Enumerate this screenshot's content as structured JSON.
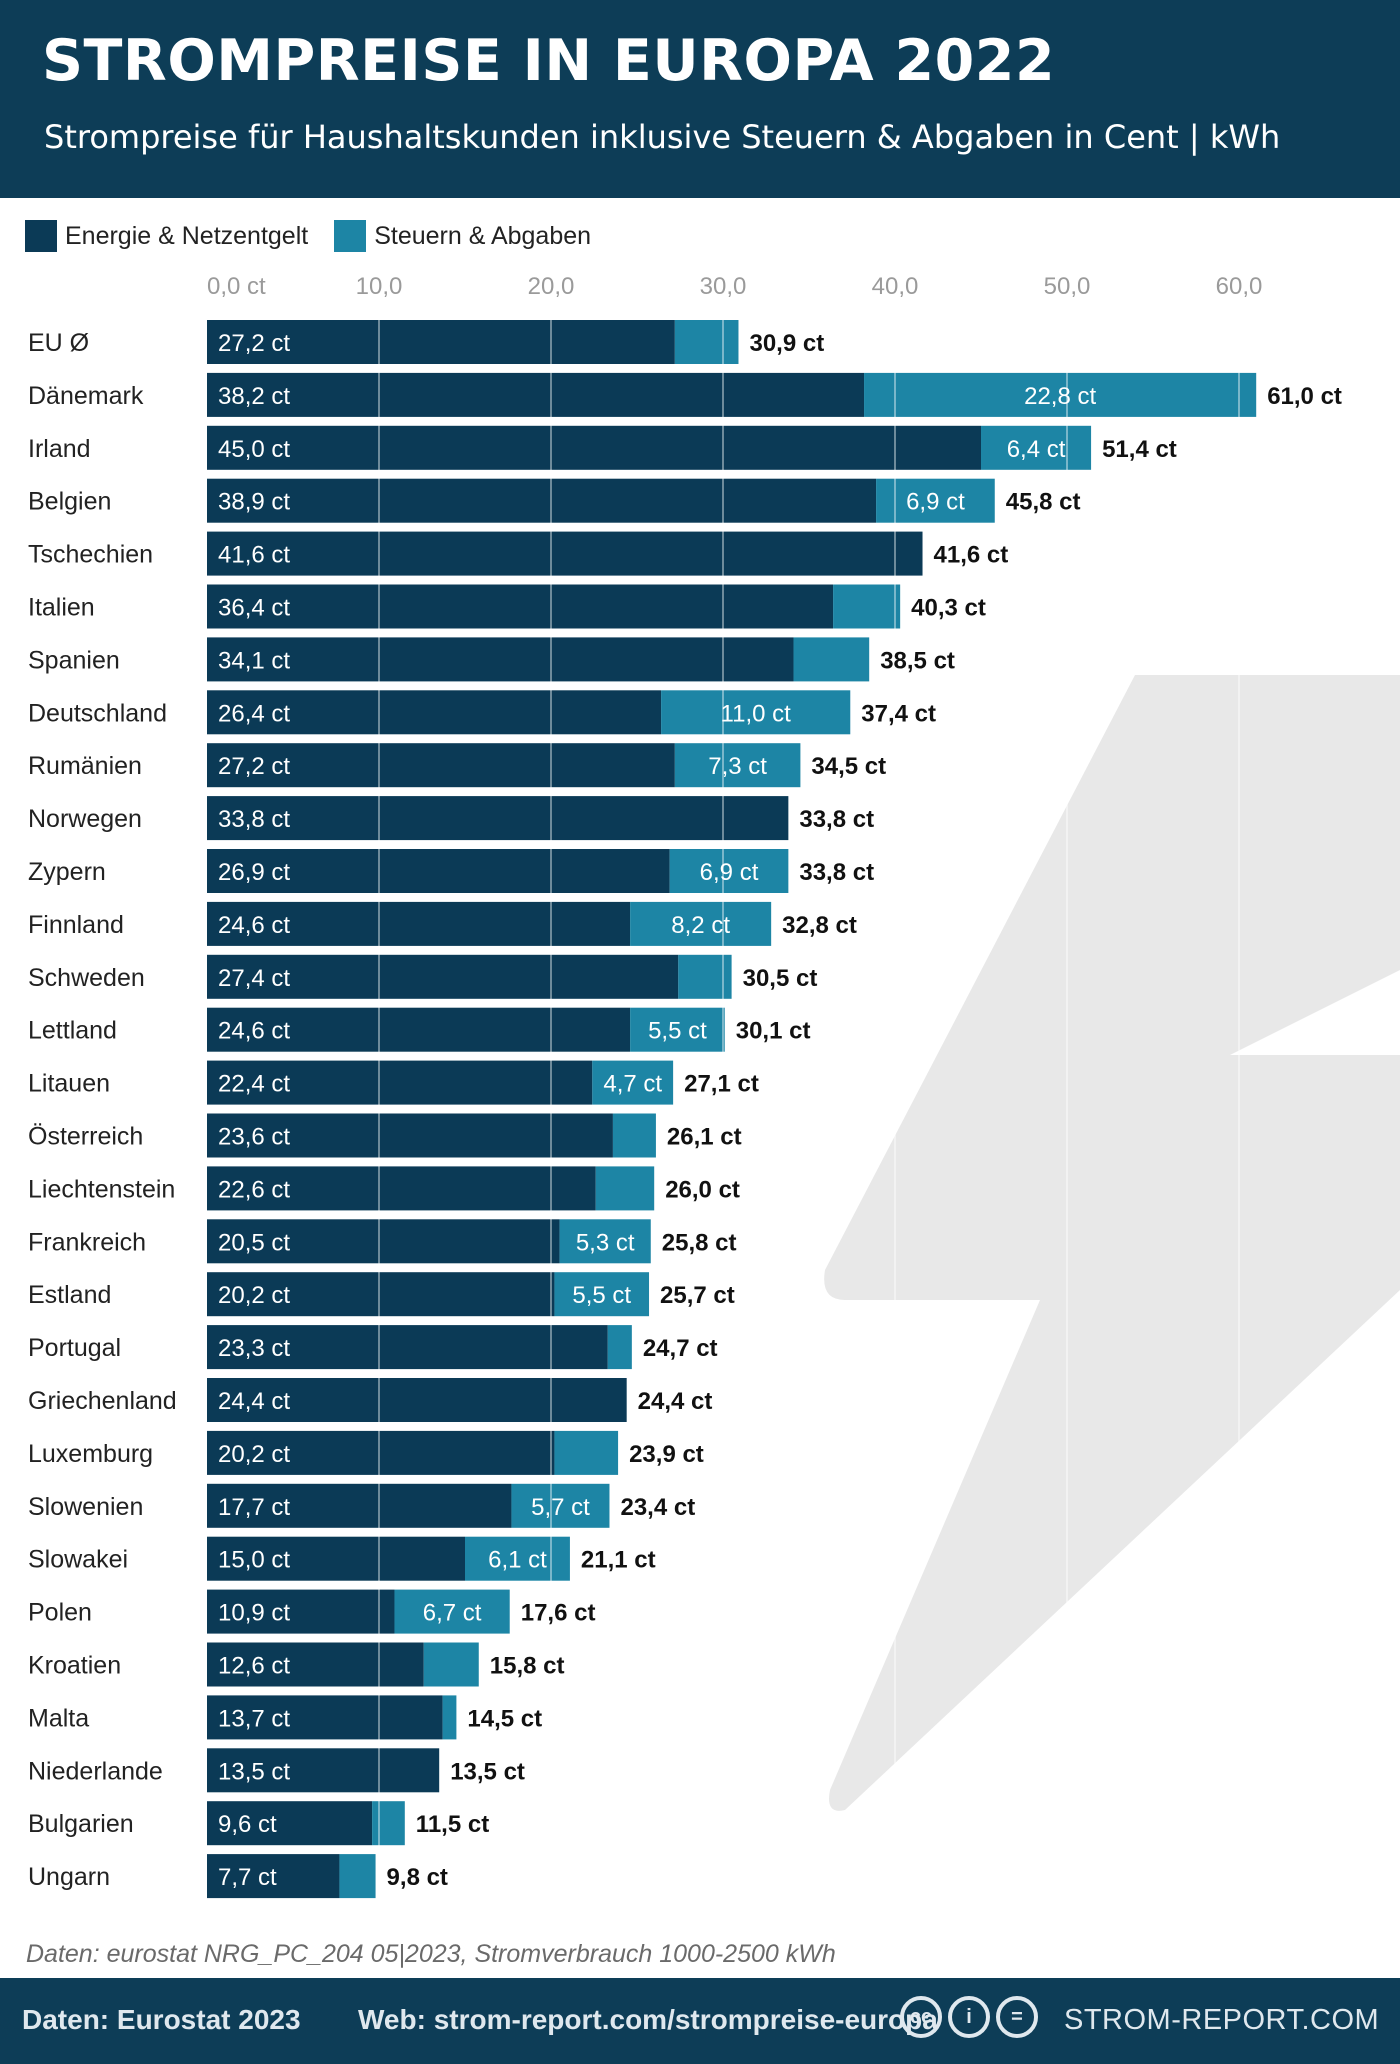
{
  "header": {
    "title": "STROMPREISE IN EUROPA 2022",
    "subtitle": "Strompreise für Haushaltskunden inklusive Steuern & Abgaben in Cent | kWh"
  },
  "legend": {
    "energy": "Energie & Netzentgelt",
    "taxes": "Steuern & Abgaben"
  },
  "colors": {
    "energy": "#0b3a56",
    "taxes": "#1d85a5",
    "header_bg": "#0d3d57",
    "bolt": "#e8e8e8"
  },
  "chart_data": {
    "type": "bar",
    "orientation": "horizontal",
    "stacked": true,
    "xlim": [
      0,
      60
    ],
    "ticks": [
      "0,0 ct",
      "10,0",
      "20,0",
      "30,0",
      "40,0",
      "50,0",
      "60,0"
    ],
    "tick_values": [
      0,
      10,
      20,
      30,
      40,
      50,
      60
    ],
    "series": [
      {
        "name": "Energie & Netzentgelt",
        "values": [
          27.2,
          38.2,
          45.0,
          38.9,
          41.6,
          36.4,
          34.1,
          26.4,
          27.2,
          33.8,
          26.9,
          24.6,
          27.4,
          24.6,
          22.4,
          23.6,
          22.6,
          20.5,
          20.2,
          23.3,
          24.4,
          20.2,
          17.7,
          15.0,
          10.9,
          12.6,
          13.7,
          13.5,
          9.6,
          7.7
        ]
      },
      {
        "name": "Steuern & Abgaben",
        "values": [
          3.7,
          22.8,
          6.4,
          6.9,
          0.0,
          3.9,
          4.4,
          11.0,
          7.3,
          0.0,
          6.9,
          8.2,
          3.1,
          5.5,
          4.7,
          2.5,
          3.4,
          5.3,
          5.5,
          1.4,
          0.0,
          3.7,
          5.7,
          6.1,
          6.7,
          3.2,
          0.8,
          0.0,
          1.9,
          2.1
        ]
      }
    ],
    "rows": [
      {
        "country": "EU Ø",
        "energy_label": "27,2 ct",
        "tax_label": "",
        "total_label": "30,9 ct"
      },
      {
        "country": "Dänemark",
        "energy_label": "38,2 ct",
        "tax_label": "22,8 ct",
        "total_label": "61,0 ct"
      },
      {
        "country": "Irland",
        "energy_label": "45,0 ct",
        "tax_label": "6,4 ct",
        "total_label": "51,4 ct"
      },
      {
        "country": "Belgien",
        "energy_label": "38,9 ct",
        "tax_label": "6,9 ct",
        "total_label": "45,8 ct"
      },
      {
        "country": "Tschechien",
        "energy_label": "41,6 ct",
        "tax_label": "",
        "total_label": "41,6 ct"
      },
      {
        "country": "Italien",
        "energy_label": "36,4 ct",
        "tax_label": "",
        "total_label": "40,3 ct"
      },
      {
        "country": "Spanien",
        "energy_label": "34,1 ct",
        "tax_label": "",
        "total_label": "38,5 ct"
      },
      {
        "country": "Deutschland",
        "energy_label": "26,4 ct",
        "tax_label": "11,0 ct",
        "total_label": "37,4 ct"
      },
      {
        "country": "Rumänien",
        "energy_label": "27,2 ct",
        "tax_label": "7,3 ct",
        "total_label": "34,5 ct"
      },
      {
        "country": "Norwegen",
        "energy_label": "33,8 ct",
        "tax_label": "",
        "total_label": "33,8 ct"
      },
      {
        "country": "Zypern",
        "energy_label": "26,9 ct",
        "tax_label": "6,9 ct",
        "total_label": "33,8 ct"
      },
      {
        "country": "Finnland",
        "energy_label": "24,6 ct",
        "tax_label": "8,2 ct",
        "total_label": "32,8 ct"
      },
      {
        "country": "Schweden",
        "energy_label": "27,4 ct",
        "tax_label": "",
        "total_label": "30,5 ct"
      },
      {
        "country": "Lettland",
        "energy_label": "24,6 ct",
        "tax_label": "5,5 ct",
        "total_label": "30,1 ct"
      },
      {
        "country": "Litauen",
        "energy_label": "22,4 ct",
        "tax_label": "4,7 ct",
        "total_label": "27,1 ct"
      },
      {
        "country": "Österreich",
        "energy_label": "23,6 ct",
        "tax_label": "",
        "total_label": "26,1 ct"
      },
      {
        "country": "Liechtenstein",
        "energy_label": "22,6 ct",
        "tax_label": "",
        "total_label": "26,0 ct"
      },
      {
        "country": "Frankreich",
        "energy_label": "20,5 ct",
        "tax_label": "5,3 ct",
        "total_label": "25,8 ct"
      },
      {
        "country": "Estland",
        "energy_label": "20,2 ct",
        "tax_label": "5,5 ct",
        "total_label": "25,7 ct"
      },
      {
        "country": "Portugal",
        "energy_label": "23,3 ct",
        "tax_label": "",
        "total_label": "24,7 ct"
      },
      {
        "country": "Griechenland",
        "energy_label": "24,4 ct",
        "tax_label": "",
        "total_label": "24,4 ct"
      },
      {
        "country": "Luxemburg",
        "energy_label": "20,2 ct",
        "tax_label": "",
        "total_label": "23,9 ct"
      },
      {
        "country": "Slowenien",
        "energy_label": "17,7 ct",
        "tax_label": "5,7 ct",
        "total_label": "23,4 ct"
      },
      {
        "country": "Slowakei",
        "energy_label": "15,0 ct",
        "tax_label": "6,1 ct",
        "total_label": "21,1 ct"
      },
      {
        "country": "Polen",
        "energy_label": "10,9 ct",
        "tax_label": "6,7 ct",
        "total_label": "17,6 ct"
      },
      {
        "country": "Kroatien",
        "energy_label": "12,6 ct",
        "tax_label": "",
        "total_label": "15,8 ct"
      },
      {
        "country": "Malta",
        "energy_label": "13,7 ct",
        "tax_label": "",
        "total_label": "14,5 ct"
      },
      {
        "country": "Niederlande",
        "energy_label": "13,5 ct",
        "tax_label": "",
        "total_label": "13,5 ct"
      },
      {
        "country": "Bulgarien",
        "energy_label": "9,6 ct",
        "tax_label": "",
        "total_label": "11,5 ct"
      },
      {
        "country": "Ungarn",
        "energy_label": "7,7 ct",
        "tax_label": "",
        "total_label": "9,8 ct"
      }
    ]
  },
  "source_note": "Daten: eurostat NRG_PC_204 05|2023, Stromverbrauch 1000-2500 kWh",
  "footer": {
    "data": "Daten: Eurostat 2023",
    "web": "Web: strom-report.com/strompreise-europa",
    "license_icons": [
      "cc-icon",
      "by-icon",
      "nd-icon"
    ],
    "brand": "STROM-REPORT.COM"
  }
}
